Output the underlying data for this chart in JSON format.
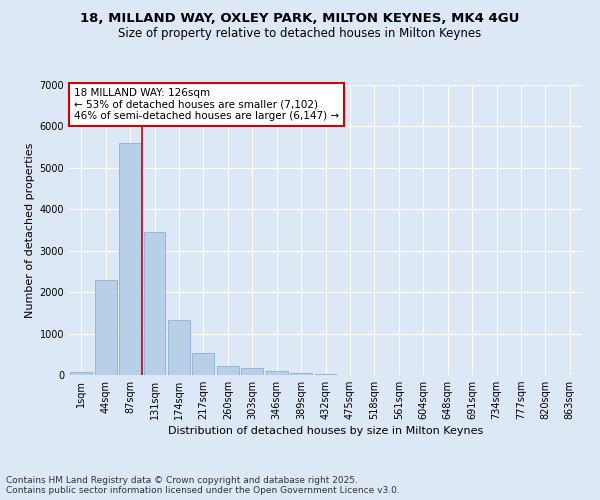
{
  "title_line1": "18, MILLAND WAY, OXLEY PARK, MILTON KEYNES, MK4 4GU",
  "title_line2": "Size of property relative to detached houses in Milton Keynes",
  "xlabel": "Distribution of detached houses by size in Milton Keynes",
  "ylabel": "Number of detached properties",
  "categories": [
    "1sqm",
    "44sqm",
    "87sqm",
    "131sqm",
    "174sqm",
    "217sqm",
    "260sqm",
    "303sqm",
    "346sqm",
    "389sqm",
    "432sqm",
    "475sqm",
    "518sqm",
    "561sqm",
    "604sqm",
    "648sqm",
    "691sqm",
    "734sqm",
    "777sqm",
    "820sqm",
    "863sqm"
  ],
  "values": [
    75,
    2300,
    5600,
    3450,
    1320,
    530,
    210,
    175,
    100,
    55,
    30,
    0,
    0,
    0,
    0,
    0,
    0,
    0,
    0,
    0,
    0
  ],
  "bar_color": "#b8cfe8",
  "bar_edge_color": "#7aaad0",
  "vline_index": 2.5,
  "vline_color": "#cc0000",
  "annotation_text": "18 MILLAND WAY: 126sqm\n← 53% of detached houses are smaller (7,102)\n46% of semi-detached houses are larger (6,147) →",
  "annotation_box_color": "#ffffff",
  "annotation_box_edge": "#cc0000",
  "ylim": [
    0,
    7000
  ],
  "yticks": [
    0,
    1000,
    2000,
    3000,
    4000,
    5000,
    6000,
    7000
  ],
  "footer_text": "Contains HM Land Registry data © Crown copyright and database right 2025.\nContains public sector information licensed under the Open Government Licence v3.0.",
  "bg_color": "#dce8f5",
  "plot_bg_color": "#dce8f5",
  "grid_color": "#ffffff",
  "title_fontsize": 9.5,
  "subtitle_fontsize": 8.5,
  "axis_label_fontsize": 8,
  "tick_fontsize": 7,
  "footer_fontsize": 6.5,
  "annotation_fontsize": 7.5
}
